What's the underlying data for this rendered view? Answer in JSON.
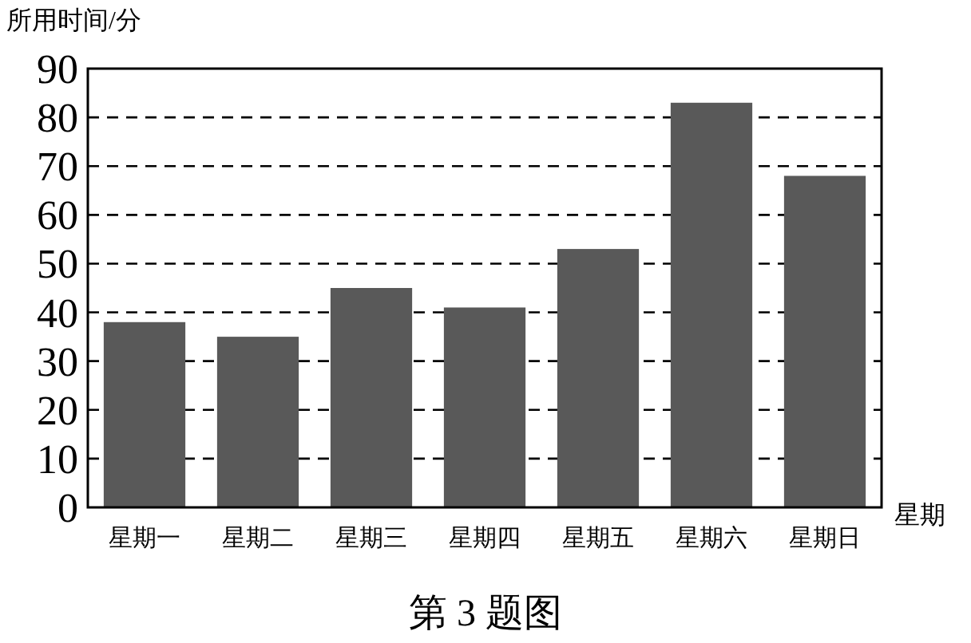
{
  "chart_data": {
    "type": "bar",
    "ylabel": "所用时间/分",
    "xlabel": "星期",
    "categories": [
      "星期一",
      "星期二",
      "星期三",
      "星期四",
      "星期五",
      "星期六",
      "星期日"
    ],
    "values": [
      38,
      35,
      45,
      41,
      53,
      83,
      68
    ],
    "color": "#595959",
    "ylim": [
      0,
      90
    ],
    "yticks": [
      0,
      10,
      20,
      30,
      40,
      50,
      60,
      70,
      80,
      90
    ],
    "grid": "y",
    "annotations": [
      "第 3 题图"
    ]
  }
}
